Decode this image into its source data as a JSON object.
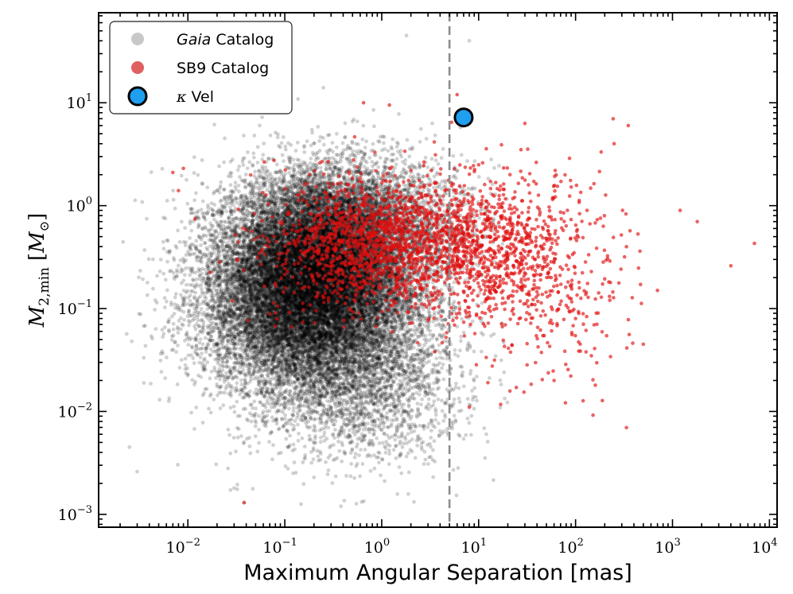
{
  "chart_data": {
    "type": "scatter",
    "title": "",
    "xlabel": "Maximum Angular Separation [mas]",
    "ylabel": "M2,min [M⊙]",
    "ylabel_main": "M",
    "ylabel_sub": "2,min",
    "ylabel_unit_open": "[",
    "ylabel_unit_main": "M",
    "ylabel_unit_sub": "⊙",
    "ylabel_unit_close": "]",
    "xscale": "log",
    "yscale": "log",
    "xlim": [
      0.0012,
      12000
    ],
    "ylim": [
      0.00075,
      75
    ],
    "x_ticks": [
      {
        "base": "10",
        "exp": "−2",
        "value": 0.01
      },
      {
        "base": "10",
        "exp": "−1",
        "value": 0.1
      },
      {
        "base": "10",
        "exp": "0",
        "value": 1
      },
      {
        "base": "10",
        "exp": "1",
        "value": 10
      },
      {
        "base": "10",
        "exp": "2",
        "value": 100
      },
      {
        "base": "10",
        "exp": "3",
        "value": 1000
      },
      {
        "base": "10",
        "exp": "4",
        "value": 10000
      }
    ],
    "y_ticks": [
      {
        "base": "10",
        "exp": "−3",
        "value": 0.001
      },
      {
        "base": "10",
        "exp": "−2",
        "value": 0.01
      },
      {
        "base": "10",
        "exp": "−1",
        "value": 0.1
      },
      {
        "base": "10",
        "exp": "0",
        "value": 1
      },
      {
        "base": "10",
        "exp": "1",
        "value": 10
      }
    ],
    "reference_line": {
      "axis": "x",
      "value": 5,
      "style": "dashed",
      "color": "#8c8c8c"
    },
    "legend": {
      "placement": "top-left",
      "entries": [
        {
          "label_italic": "Gaia",
          "label": " Catalog",
          "color": "#c8c8c8",
          "marker": "small-circle"
        },
        {
          "label_italic": "",
          "label": "SB9 Catalog",
          "color": "#e06060",
          "marker": "small-circle"
        },
        {
          "label_italic": "κ",
          "label": " Vel",
          "color": "#1f9ff0",
          "marker": "large-circle-outlined"
        }
      ]
    },
    "series": [
      {
        "name": "Gaia Catalog",
        "color": "#000000",
        "alpha": 0.18,
        "count": 26000,
        "clusters": [
          {
            "log_x_mean": -0.65,
            "log_y_mean": -0.55,
            "log_x_sd": 0.5,
            "log_y_sd": 0.42,
            "share": 0.5
          },
          {
            "log_x_mean": -0.8,
            "log_y_mean": -1.05,
            "log_x_sd": 0.55,
            "log_y_sd": 0.38,
            "share": 0.3
          },
          {
            "log_x_mean": -0.3,
            "log_y_mean": -1.7,
            "log_x_sd": 0.6,
            "log_y_sd": 0.4,
            "share": 0.1
          },
          {
            "log_x_mean": -0.2,
            "log_y_mean": -0.15,
            "log_x_sd": 0.6,
            "log_y_sd": 0.3,
            "share": 0.1
          }
        ],
        "log_x_range": [
          -2.7,
          1.3
        ],
        "log_y_range": [
          -2.95,
          1.7
        ],
        "outliers": [
          {
            "x": 1.8,
            "y": 45
          },
          {
            "x": 8,
            "y": 40
          },
          {
            "x": 0.25,
            "y": 14
          },
          {
            "x": 0.038,
            "y": 0.0013
          },
          {
            "x": 0.03,
            "y": 0.0018
          },
          {
            "x": 12,
            "y": 0.006
          },
          {
            "x": 15,
            "y": 0.25
          },
          {
            "x": 0.003,
            "y": 0.0026
          },
          {
            "x": 0.0025,
            "y": 0.0045
          }
        ]
      },
      {
        "name": "SB9 Catalog",
        "color": "#e01010",
        "alpha": 0.65,
        "count": 2600,
        "clusters": [
          {
            "log_x_mean": 0.0,
            "log_y_mean": -0.35,
            "log_x_sd": 0.55,
            "log_y_sd": 0.32,
            "share": 0.6
          },
          {
            "log_x_mean": 1.2,
            "log_y_mean": -0.4,
            "log_x_sd": 0.45,
            "log_y_sd": 0.35,
            "share": 0.3
          },
          {
            "log_x_mean": 1.7,
            "log_y_mean": -0.9,
            "log_x_sd": 0.45,
            "log_y_sd": 0.5,
            "share": 0.1
          }
        ],
        "log_x_range": [
          -2.2,
          3.9
        ],
        "log_y_range": [
          -2.2,
          1.1
        ],
        "outliers": [
          {
            "x": 0.038,
            "y": 0.0013
          },
          {
            "x": 7000,
            "y": 0.43
          },
          {
            "x": 4000,
            "y": 0.26
          },
          {
            "x": 1800,
            "y": 0.7
          },
          {
            "x": 1200,
            "y": 0.9
          },
          {
            "x": 500,
            "y": 0.045
          },
          {
            "x": 350,
            "y": 6
          },
          {
            "x": 250,
            "y": 4
          },
          {
            "x": 8,
            "y": 0.011
          },
          {
            "x": 60,
            "y": 0.02
          },
          {
            "x": 160,
            "y": 0.018
          },
          {
            "x": 0.007,
            "y": 2.1
          },
          {
            "x": 0.008,
            "y": 1.4
          },
          {
            "x": 0.009,
            "y": 2.3
          },
          {
            "x": 0.65,
            "y": 10
          },
          {
            "x": 1.2,
            "y": 9.5
          },
          {
            "x": 6,
            "y": 12
          },
          {
            "x": 30,
            "y": 6.3
          },
          {
            "x": 100,
            "y": 0.08
          },
          {
            "x": 700,
            "y": 0.15
          }
        ]
      },
      {
        "name": "κ Vel",
        "color": "#1f9ff0",
        "points": [
          {
            "x": 7,
            "y": 7.2
          }
        ]
      }
    ]
  }
}
